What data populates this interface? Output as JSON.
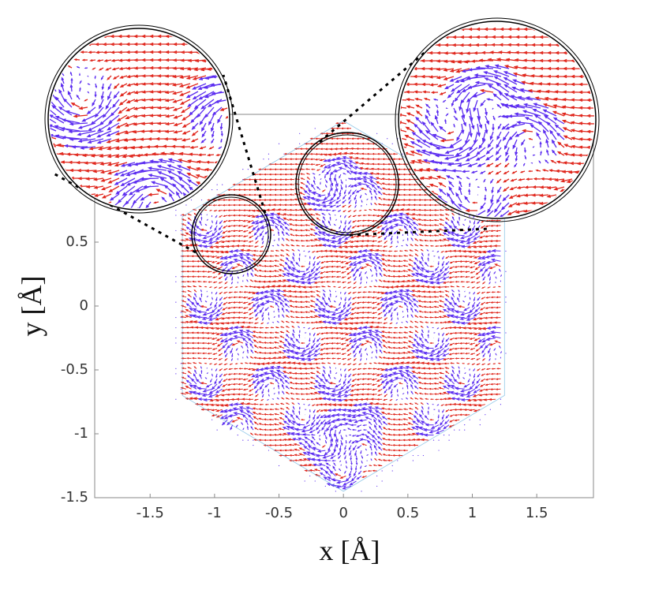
{
  "chart_data": {
    "type": "quiver",
    "xlabel": "x [Å]",
    "ylabel": "y [Å]",
    "xlim": [
      -1.93,
      1.94
    ],
    "ylim": [
      -1.5,
      1.5
    ],
    "xticks": [
      -1.5,
      -1,
      -0.5,
      0,
      0.5,
      1,
      1.5
    ],
    "yticks": [
      -1.5,
      -1,
      -0.5,
      0,
      0.5
    ],
    "colors": {
      "base": "#e0261c",
      "vortex": "#5b2cf0"
    }
  }
}
